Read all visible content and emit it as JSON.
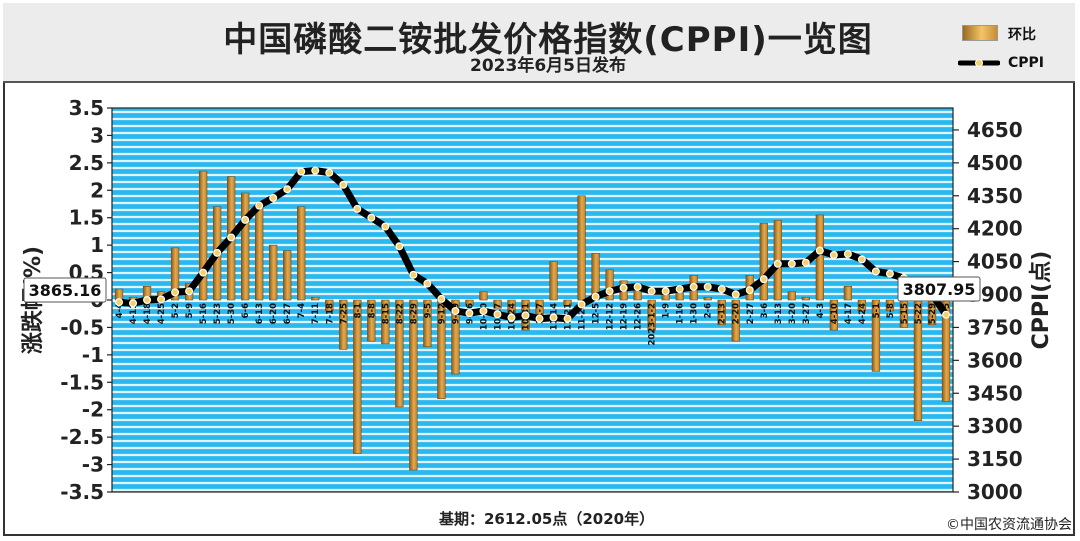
{
  "header": {
    "title": "中国磷酸二铵批发价格指数(CPPI)一览图",
    "subtitle": "2023年6月5日发布"
  },
  "legend": {
    "bar_label": "环比",
    "line_label": "CPPI"
  },
  "footer": {
    "base": "基期：2612.05点（2020年）",
    "copyright": "©中国农资流通协会"
  },
  "annotations": {
    "start_value": "3865.16",
    "end_value": "3807.95"
  },
  "colors": {
    "plot_bg": "#2bb8ef",
    "bar": "#e6a94c",
    "line": "#000000",
    "marker": "#f5d06a"
  },
  "chart_data": {
    "type": "bar+line",
    "x_tick_labels": [
      "4-4",
      "4-11",
      "4-18",
      "4-25",
      "5-2",
      "5-9",
      "5-16",
      "5-23",
      "5-30",
      "6-6",
      "6-13",
      "6-20",
      "6-27",
      "7-4",
      "7-11",
      "7-18",
      "7-25",
      "8-1",
      "8-8",
      "8-15",
      "8-22",
      "8-29",
      "9-5",
      "9-12",
      "9-19",
      "9-26",
      "10-10",
      "10-17",
      "10-24",
      "10-31",
      "11-7",
      "11-14",
      "11-21",
      "11-28",
      "12-5",
      "12-12",
      "12-19",
      "12-26",
      "2023-1-2",
      "1-9",
      "1-16",
      "1-30",
      "2-6",
      "2-13",
      "2-20",
      "2-27",
      "3-6",
      "3-13",
      "3-20",
      "3-27",
      "4-3",
      "4-10",
      "4-17",
      "4-24",
      "5-1",
      "5-8",
      "5-15",
      "5-22",
      "5-29",
      "6-5"
    ],
    "ylabel_left": "涨跌幅(%)",
    "ylabel_right": "CPPI(点)",
    "ylim_left": [
      -3.5,
      3.5
    ],
    "ylim_right": [
      3000,
      4750
    ],
    "left_ticks": [
      "3.5",
      "3",
      "2.5",
      "2",
      "1.5",
      "1",
      "0.5",
      "0",
      "-0.5",
      "-1",
      "-1.5",
      "-2",
      "-2.5",
      "-3",
      "-3.5"
    ],
    "right_ticks": [
      "4650",
      "4500",
      "4350",
      "4200",
      "4050",
      "3900",
      "3750",
      "3600",
      "3450",
      "3300",
      "3150",
      "3000"
    ],
    "series": [
      {
        "name": "环比",
        "axis": "left",
        "type": "bar",
        "values": [
          0.2,
          0.05,
          0.25,
          0.15,
          0.95,
          0.3,
          2.35,
          1.7,
          2.25,
          1.95,
          1.75,
          1.0,
          0.9,
          1.7,
          0.05,
          -0.2,
          -0.9,
          -2.8,
          -0.75,
          -0.8,
          -1.95,
          -3.1,
          -0.85,
          -1.8,
          -1.35,
          -0.1,
          0.15,
          -0.15,
          -0.3,
          -0.55,
          -0.3,
          0.7,
          -0.1,
          1.9,
          0.85,
          0.55,
          0.35,
          0.3,
          -0.55,
          0.1,
          0.15,
          0.45,
          0.05,
          -0.45,
          -0.75,
          0.45,
          1.4,
          1.45,
          0.15,
          0.05,
          1.55,
          -0.55,
          0.25,
          -0.2,
          -1.3,
          -0.2,
          -0.5,
          -2.2,
          -0.45,
          -1.85
        ]
      },
      {
        "name": "CPPI",
        "axis": "right",
        "type": "line",
        "values": [
          3865,
          3860,
          3875,
          3878,
          3910,
          3915,
          4000,
          4090,
          4160,
          4240,
          4305,
          4340,
          4380,
          4460,
          4465,
          4455,
          4400,
          4290,
          4250,
          4210,
          4120,
          3990,
          3950,
          3880,
          3825,
          3815,
          3825,
          3810,
          3795,
          3805,
          3790,
          3795,
          3790,
          3855,
          3890,
          3915,
          3930,
          3935,
          3915,
          3915,
          3925,
          3935,
          3935,
          3925,
          3900,
          3920,
          3970,
          4040,
          4040,
          4045,
          4100,
          4080,
          4085,
          4060,
          4005,
          3995,
          3975,
          3925,
          3900,
          3808
        ]
      }
    ]
  }
}
